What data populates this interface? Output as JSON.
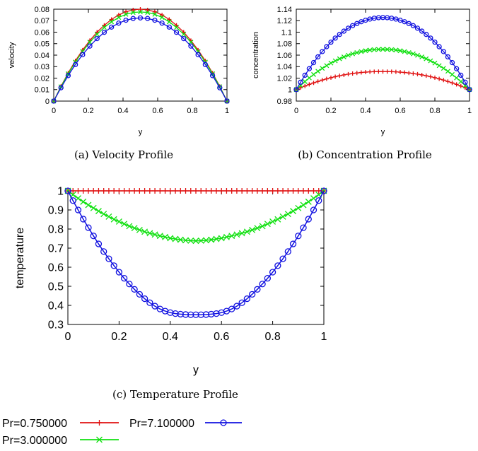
{
  "legend": {
    "entries": [
      {
        "label": "Pr=0.750000",
        "color": "#e01010",
        "marker": "plus"
      },
      {
        "label": "Pr=7.100000",
        "color": "#1010e0",
        "marker": "circle"
      },
      {
        "label": "Pr=3.000000",
        "color": "#10e010",
        "marker": "cross"
      }
    ]
  },
  "chart_data": [
    {
      "type": "line",
      "id": "velocity",
      "caption": "(a) Velocity Profile",
      "xlabel": "y",
      "ylabel": "velocity",
      "xlim": [
        0,
        1
      ],
      "ylim": [
        0,
        0.08
      ],
      "xticks": [
        "0",
        "0.2",
        "0.4",
        "0.6",
        "0.8",
        "1"
      ],
      "yticks": [
        "0",
        "0.01",
        "0.02",
        "0.03",
        "0.04",
        "0.05",
        "0.06",
        "0.07",
        "0.08"
      ],
      "grid": false,
      "x": [
        0,
        0.0417,
        0.0833,
        0.125,
        0.1667,
        0.2083,
        0.25,
        0.2917,
        0.3333,
        0.375,
        0.4167,
        0.4583,
        0.5,
        0.5417,
        0.5833,
        0.625,
        0.6667,
        0.7083,
        0.75,
        0.7917,
        0.8333,
        0.875,
        0.9167,
        0.9583,
        1
      ],
      "series": [
        {
          "name": "Pr=0.750000",
          "color": "#e01010",
          "marker": "plus",
          "values": [
            0,
            0.0128,
            0.0244,
            0.035,
            0.0444,
            0.0527,
            0.06,
            0.066,
            0.0711,
            0.075,
            0.0778,
            0.0794,
            0.08,
            0.0794,
            0.0778,
            0.075,
            0.0711,
            0.066,
            0.06,
            0.0527,
            0.0444,
            0.035,
            0.0244,
            0.0128,
            0
          ]
        },
        {
          "name": "Pr=3.000000",
          "color": "#10e010",
          "marker": "cross",
          "values": [
            0,
            0.0125,
            0.0238,
            0.034,
            0.0432,
            0.0513,
            0.0582,
            0.0641,
            0.069,
            0.0728,
            0.0755,
            0.0771,
            0.0776,
            0.0771,
            0.0755,
            0.0728,
            0.069,
            0.0641,
            0.0582,
            0.0513,
            0.0432,
            0.034,
            0.0238,
            0.0125,
            0
          ]
        },
        {
          "name": "Pr=7.100000",
          "color": "#1010e0",
          "marker": "circle",
          "values": [
            0,
            0.0116,
            0.0222,
            0.0318,
            0.0404,
            0.0479,
            0.0544,
            0.0599,
            0.0644,
            0.0679,
            0.0704,
            0.0719,
            0.0724,
            0.0719,
            0.0704,
            0.0679,
            0.0644,
            0.0599,
            0.0544,
            0.0479,
            0.0404,
            0.0318,
            0.0222,
            0.0116,
            0
          ]
        }
      ]
    },
    {
      "type": "line",
      "id": "concentration",
      "caption": "(b) Concentration Profile",
      "xlabel": "y",
      "ylabel": "concentration",
      "xlim": [
        0,
        1
      ],
      "ylim": [
        0.98,
        1.14
      ],
      "xticks": [
        "0",
        "0.2",
        "0.4",
        "0.6",
        "0.8",
        "1"
      ],
      "yticks": [
        "0.98",
        "1",
        "1.02",
        "1.04",
        "1.06",
        "1.08",
        "1.1",
        "1.12",
        "1.14"
      ],
      "grid": false,
      "x": [
        0,
        0.025,
        0.05,
        0.075,
        0.1,
        0.125,
        0.15,
        0.175,
        0.2,
        0.225,
        0.25,
        0.275,
        0.3,
        0.325,
        0.35,
        0.375,
        0.4,
        0.425,
        0.45,
        0.475,
        0.5,
        0.525,
        0.55,
        0.575,
        0.6,
        0.625,
        0.65,
        0.675,
        0.7,
        0.725,
        0.75,
        0.775,
        0.8,
        0.825,
        0.85,
        0.875,
        0.9,
        0.925,
        0.95,
        0.975,
        1
      ],
      "series": [
        {
          "name": "Pr=0.750000",
          "color": "#e01010",
          "marker": "plus",
          "values": [
            1.0,
            1.0032,
            1.0062,
            1.0091,
            1.0117,
            1.0142,
            1.0166,
            1.0187,
            1.0207,
            1.0225,
            1.0241,
            1.0256,
            1.0269,
            1.028,
            1.029,
            1.0298,
            1.0304,
            1.0309,
            1.0312,
            1.0314,
            1.0314,
            1.0314,
            1.0312,
            1.0309,
            1.0304,
            1.0298,
            1.029,
            1.028,
            1.0269,
            1.0256,
            1.0241,
            1.0225,
            1.0207,
            1.0187,
            1.0166,
            1.0142,
            1.0117,
            1.0091,
            1.0062,
            1.0032,
            1.0
          ]
        },
        {
          "name": "Pr=3.000000",
          "color": "#10e010",
          "marker": "cross",
          "values": [
            1.0,
            1.0072,
            1.014,
            1.0204,
            1.0263,
            1.0319,
            1.037,
            1.0418,
            1.0462,
            1.0501,
            1.0537,
            1.0569,
            1.0598,
            1.0623,
            1.0644,
            1.0662,
            1.0677,
            1.0688,
            1.0696,
            1.07,
            1.0702,
            1.07,
            1.0696,
            1.0688,
            1.0677,
            1.0662,
            1.0644,
            1.0623,
            1.0598,
            1.0569,
            1.0537,
            1.0501,
            1.0462,
            1.0418,
            1.037,
            1.0319,
            1.0263,
            1.0204,
            1.014,
            1.0072,
            1.0
          ]
        },
        {
          "name": "Pr=7.100000",
          "color": "#1010e0",
          "marker": "circle",
          "values": [
            1.0,
            1.0129,
            1.025,
            1.0364,
            1.047,
            1.057,
            1.0662,
            1.0747,
            1.0826,
            1.0897,
            1.0961,
            1.1018,
            1.1069,
            1.1113,
            1.115,
            1.1182,
            1.1208,
            1.1228,
            1.1243,
            1.1252,
            1.1255,
            1.1252,
            1.1243,
            1.1228,
            1.1208,
            1.1182,
            1.115,
            1.1113,
            1.1069,
            1.1018,
            1.0961,
            1.0897,
            1.0826,
            1.0747,
            1.0662,
            1.057,
            1.047,
            1.0364,
            1.025,
            1.0129,
            1.0
          ]
        }
      ]
    },
    {
      "type": "line",
      "id": "temperature",
      "caption": "(c) Temperature Profile",
      "xlabel": "y",
      "ylabel": "temperature",
      "xlim": [
        0,
        1
      ],
      "ylim": [
        0.3,
        1
      ],
      "xticks": [
        "0",
        "0.2",
        "0.4",
        "0.6",
        "0.8",
        "1"
      ],
      "yticks": [
        "0.3",
        "0.4",
        "0.5",
        "0.6",
        "0.7",
        "0.8",
        "0.9",
        "1"
      ],
      "grid": false,
      "x": [
        0,
        0.02,
        0.04,
        0.06,
        0.08,
        0.1,
        0.12,
        0.14,
        0.16,
        0.18,
        0.2,
        0.22,
        0.24,
        0.26,
        0.28,
        0.3,
        0.32,
        0.34,
        0.36,
        0.38,
        0.4,
        0.42,
        0.44,
        0.46,
        0.48,
        0.5,
        0.52,
        0.54,
        0.56,
        0.58,
        0.6,
        0.62,
        0.64,
        0.66,
        0.68,
        0.7,
        0.72,
        0.74,
        0.76,
        0.78,
        0.8,
        0.82,
        0.84,
        0.86,
        0.88,
        0.9,
        0.92,
        0.94,
        0.96,
        0.98,
        1
      ],
      "series": [
        {
          "name": "Pr=0.750000",
          "color": "#e01010",
          "marker": "plus",
          "values": [
            1,
            1,
            1,
            1,
            1,
            1,
            1,
            1,
            1,
            1,
            1,
            1,
            1,
            1,
            1,
            1,
            1,
            1,
            1,
            1,
            1,
            1,
            1,
            1,
            1,
            1,
            1,
            1,
            1,
            1,
            1,
            1,
            1,
            1,
            1,
            1,
            1,
            1,
            1,
            1,
            1,
            1,
            1,
            1,
            1,
            1,
            1,
            1,
            1,
            1,
            1
          ]
        },
        {
          "name": "Pr=3.000000",
          "color": "#10e010",
          "marker": "cross",
          "values": [
            1.0,
            0.98,
            0.961,
            0.943,
            0.926,
            0.91,
            0.894,
            0.879,
            0.865,
            0.851,
            0.839,
            0.827,
            0.815,
            0.805,
            0.795,
            0.786,
            0.778,
            0.771,
            0.764,
            0.758,
            0.752,
            0.748,
            0.744,
            0.741,
            0.739,
            0.738,
            0.739,
            0.741,
            0.744,
            0.748,
            0.752,
            0.758,
            0.764,
            0.771,
            0.778,
            0.786,
            0.795,
            0.805,
            0.815,
            0.827,
            0.839,
            0.851,
            0.865,
            0.879,
            0.894,
            0.91,
            0.926,
            0.943,
            0.961,
            0.98,
            1.0
          ]
        },
        {
          "name": "Pr=7.100000",
          "color": "#1010e0",
          "marker": "circle",
          "values": [
            1.0,
            0.949,
            0.9,
            0.852,
            0.807,
            0.764,
            0.722,
            0.682,
            0.644,
            0.608,
            0.574,
            0.542,
            0.512,
            0.484,
            0.458,
            0.435,
            0.414,
            0.396,
            0.381,
            0.37,
            0.362,
            0.357,
            0.354,
            0.352,
            0.351,
            0.351,
            0.351,
            0.352,
            0.354,
            0.357,
            0.362,
            0.37,
            0.381,
            0.396,
            0.414,
            0.435,
            0.458,
            0.484,
            0.512,
            0.542,
            0.574,
            0.608,
            0.644,
            0.682,
            0.722,
            0.764,
            0.807,
            0.852,
            0.9,
            0.949,
            1.0
          ]
        }
      ]
    }
  ]
}
